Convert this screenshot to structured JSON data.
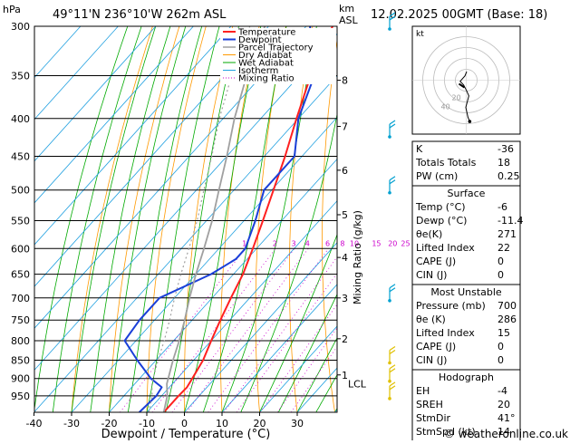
{
  "header": {
    "hpa_label": "hPa",
    "location": "49°11'N  236°10'W  262m  ASL",
    "km_label": "km",
    "asl_label": "ASL",
    "datetime": "12.02.2025  00GMT  (Base: 18)"
  },
  "footer": {
    "xlabel": "Dewpoint / Temperature (°C)",
    "copyright": "© weatheronline.co.uk"
  },
  "colors": {
    "temperature": "#ff2020",
    "dewpoint": "#1a3fd8",
    "parcel": "#a0a0a0",
    "dry_adiabat": "#ff9900",
    "wet_adiabat": "#00aa00",
    "isotherm": "#20a0e0",
    "mixing_ratio": "#cc00cc",
    "isobar": "#000000",
    "wind_barb_upper": "#00a0d0",
    "wind_barb_lower": "#e0c000"
  },
  "chart_data": [
    {
      "type": "line",
      "subtype": "skew-T log-P sounding",
      "y_scale": "log",
      "ylabel": "hPa",
      "xlabel": "Dewpoint / Temperature (°C)",
      "pressure_levels": [
        300,
        350,
        400,
        450,
        500,
        550,
        600,
        650,
        700,
        750,
        800,
        850,
        900,
        950
      ],
      "x_ticks": [
        -40,
        -30,
        -20,
        -10,
        0,
        10,
        20,
        30
      ],
      "xlim": [
        -40,
        40
      ],
      "ylim": [
        300,
        1000
      ],
      "height_ticks_km": [
        1,
        2,
        3,
        4,
        5,
        6,
        7,
        8
      ],
      "lcl_label": "LCL",
      "lcl_pressure": 915,
      "mixing_ratio_axis_label": "Mixing Ratio (g/kg)",
      "mixing_ratio_values": [
        "1",
        "2",
        "3",
        "4",
        "6",
        "8",
        "10",
        "15",
        "20",
        "25"
      ],
      "legend": [
        "Temperature",
        "Dewpoint",
        "Parcel Trajectory",
        "Dry Adiabat",
        "Wet Adiabat",
        "Isotherm",
        "Mixing Ratio"
      ],
      "legend_position": "top",
      "series": [
        {
          "name": "Temperature",
          "points": [
            [
              1000,
              -5.5
            ],
            [
              950,
              -5.5
            ],
            [
              925,
              -5.3
            ],
            [
              900,
              -6
            ],
            [
              850,
              -7.5
            ],
            [
              800,
              -10
            ],
            [
              750,
              -12.5
            ],
            [
              700,
              -15
            ],
            [
              650,
              -17.5
            ],
            [
              600,
              -21
            ],
            [
              550,
              -25
            ],
            [
              500,
              -29.5
            ],
            [
              450,
              -34.5
            ],
            [
              400,
              -40.5
            ],
            [
              350,
              -47
            ],
            [
              300,
              -53
            ]
          ]
        },
        {
          "name": "Dewpoint",
          "points": [
            [
              1000,
              -12
            ],
            [
              950,
              -11.4
            ],
            [
              925,
              -12
            ],
            [
              900,
              -17
            ],
            [
              850,
              -25
            ],
            [
              800,
              -33
            ],
            [
              750,
              -34
            ],
            [
              700,
              -34
            ],
            [
              650,
              -26
            ],
            [
              620,
              -23
            ],
            [
              600,
              -23
            ],
            [
              550,
              -27
            ],
            [
              500,
              -32
            ],
            [
              450,
              -32
            ],
            [
              400,
              -40
            ],
            [
              350,
              -46
            ],
            [
              300,
              -59
            ]
          ]
        },
        {
          "name": "Parcel Trajectory",
          "points": [
            [
              1000,
              -5.5
            ],
            [
              950,
              -8.5
            ],
            [
              915,
              -11.5
            ],
            [
              850,
              -15.5
            ],
            [
              800,
              -18.5
            ],
            [
              750,
              -22
            ],
            [
              700,
              -26
            ],
            [
              650,
              -30
            ],
            [
              600,
              -34
            ],
            [
              550,
              -38.5
            ],
            [
              500,
              -44
            ],
            [
              450,
              -50
            ],
            [
              400,
              -57
            ],
            [
              350,
              -64
            ],
            [
              300,
              -71
            ]
          ]
        }
      ]
    },
    {
      "type": "scatter",
      "subtype": "hodograph",
      "label": "kt",
      "ring_labels": [
        "20",
        "40"
      ],
      "points": [
        [
          0.2,
          -4
        ],
        [
          -0.6,
          -2
        ],
        [
          -2.8,
          0.5
        ],
        [
          -1.2,
          2.2
        ],
        [
          0,
          4.5
        ],
        [
          1.2,
          7.2
        ],
        [
          -0.2,
          12.5
        ],
        [
          0.8,
          17
        ],
        [
          1.6,
          19
        ]
      ]
    }
  ],
  "indices": {
    "rows": [
      {
        "label": "K",
        "value": "-36"
      },
      {
        "label": "Totals Totals",
        "value": "18"
      },
      {
        "label": "PW (cm)",
        "value": "0.25"
      }
    ]
  },
  "surface": {
    "title": "Surface",
    "rows": [
      {
        "label": "Temp (°C)",
        "value": "-6"
      },
      {
        "label": "Dewp (°C)",
        "value": "-11.4"
      },
      {
        "label": "θe(K)",
        "value": "271"
      },
      {
        "label": "Lifted Index",
        "value": "22"
      },
      {
        "label": "CAPE (J)",
        "value": "0"
      },
      {
        "label": "CIN (J)",
        "value": "0"
      }
    ]
  },
  "most_unstable": {
    "title": "Most Unstable",
    "rows": [
      {
        "label": "Pressure (mb)",
        "value": "700"
      },
      {
        "label": "θe (K)",
        "value": "286"
      },
      {
        "label": "Lifted Index",
        "value": "15"
      },
      {
        "label": "CAPE (J)",
        "value": "0"
      },
      {
        "label": "CIN (J)",
        "value": "0"
      }
    ]
  },
  "hodograph_table": {
    "title": "Hodograph",
    "rows": [
      {
        "label": "EH",
        "value": "-4"
      },
      {
        "label": "SREH",
        "value": "20"
      },
      {
        "label": "StmDir",
        "value": "41°"
      },
      {
        "label": "StmSpd (kt)",
        "value": "14"
      }
    ]
  }
}
